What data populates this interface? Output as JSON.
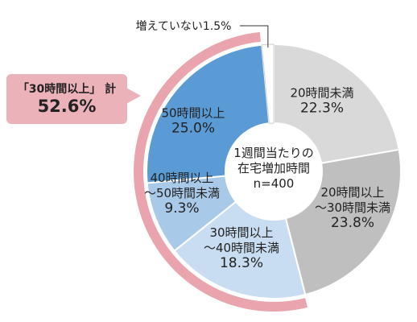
{
  "chart_data": {
    "type": "pie",
    "center_label": [
      "1週間当たりの",
      "在宅増加時間",
      "n=400"
    ],
    "slices": [
      {
        "label": [
          "20時間未満"
        ],
        "value": 22.3,
        "value_text": "22.3%",
        "color": "#d9d9d9"
      },
      {
        "label": [
          "20時間以上",
          "〜30時間未満"
        ],
        "value": 23.8,
        "value_text": "23.8%",
        "color": "#bfbfbf"
      },
      {
        "label": [
          "30時間以上",
          "〜40時間未満"
        ],
        "value": 18.3,
        "value_text": "18.3%",
        "color": "#c8ddf1"
      },
      {
        "label": [
          "40時間以上",
          "〜50時間未満"
        ],
        "value": 9.3,
        "value_text": "9.3%",
        "color": "#a9c9e8"
      },
      {
        "label": [
          "50時間以上"
        ],
        "value": 25.0,
        "value_text": "25.0%",
        "color": "#5b9bd5"
      },
      {
        "label": [
          "増えていない"
        ],
        "value": 1.5,
        "value_text": "1.5%",
        "color": "#ffffff"
      }
    ],
    "highlight": {
      "label": "「30時間以上」 計",
      "value": 52.6,
      "value_text": "52.6%",
      "color": "#e9a4ae"
    }
  }
}
